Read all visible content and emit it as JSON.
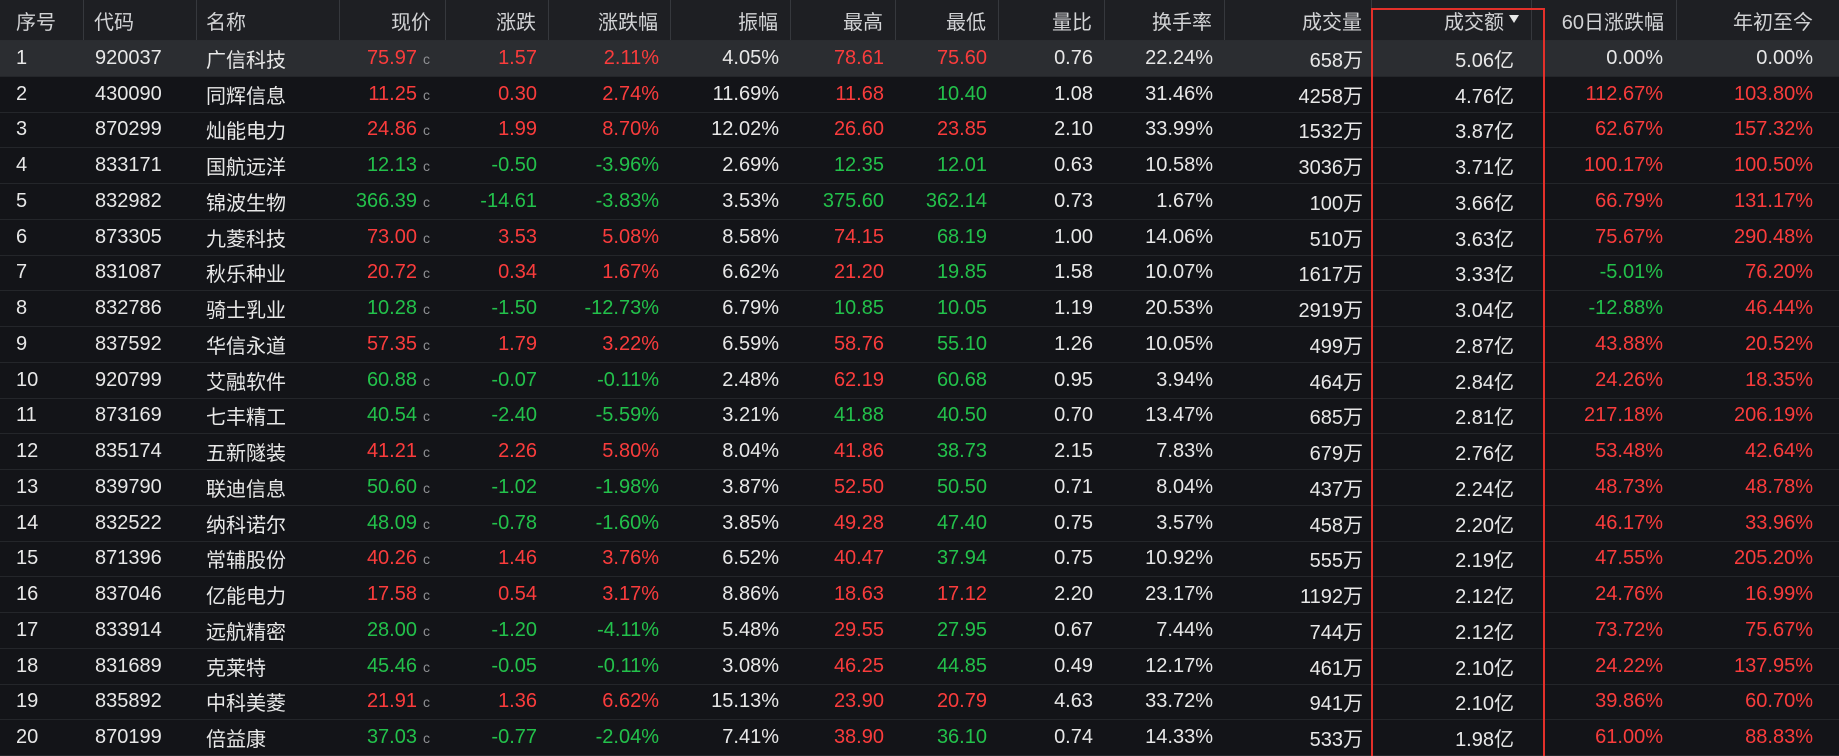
{
  "header": {
    "rank": "序号",
    "code": "代码",
    "name": "名称",
    "price": "现价",
    "change": "涨跌",
    "pct": "涨跌幅",
    "amplitude": "振幅",
    "high": "最高",
    "low": "最低",
    "vol_ratio": "量比",
    "turnover": "换手率",
    "volume": "成交量",
    "amount": "成交额",
    "chg60": "60日涨跌幅",
    "ytd": "年初至今"
  },
  "sort_icon": "sort-desc-icon",
  "price_marker": "c",
  "selected_row": 1,
  "colors": {
    "up": "#fa3c3c",
    "down": "#23c14b",
    "flat": "#e8e8e8",
    "highlight_box": "#e3302a"
  },
  "rows": [
    {
      "rank": "1",
      "code": "920037",
      "name": "广信科技",
      "price": "75.97",
      "change": "1.57",
      "pct": "2.11%",
      "amplitude": "4.05%",
      "high": "78.61",
      "low": "75.60",
      "vol_ratio": "0.76",
      "turnover": "22.24%",
      "volume": "658万",
      "amount": "5.06亿",
      "chg60": "0.00%",
      "ytd": "0.00%"
    },
    {
      "rank": "2",
      "code": "430090",
      "name": "同辉信息",
      "price": "11.25",
      "change": "0.30",
      "pct": "2.74%",
      "amplitude": "11.69%",
      "high": "11.68",
      "low": "10.40",
      "vol_ratio": "1.08",
      "turnover": "31.46%",
      "volume": "4258万",
      "amount": "4.76亿",
      "chg60": "112.67%",
      "ytd": "103.80%"
    },
    {
      "rank": "3",
      "code": "870299",
      "name": "灿能电力",
      "price": "24.86",
      "change": "1.99",
      "pct": "8.70%",
      "amplitude": "12.02%",
      "high": "26.60",
      "low": "23.85",
      "vol_ratio": "2.10",
      "turnover": "33.99%",
      "volume": "1532万",
      "amount": "3.87亿",
      "chg60": "62.67%",
      "ytd": "157.32%"
    },
    {
      "rank": "4",
      "code": "833171",
      "name": "国航远洋",
      "price": "12.13",
      "change": "-0.50",
      "pct": "-3.96%",
      "amplitude": "2.69%",
      "high": "12.35",
      "low": "12.01",
      "vol_ratio": "0.63",
      "turnover": "10.58%",
      "volume": "3036万",
      "amount": "3.71亿",
      "chg60": "100.17%",
      "ytd": "100.50%"
    },
    {
      "rank": "5",
      "code": "832982",
      "name": "锦波生物",
      "price": "366.39",
      "change": "-14.61",
      "pct": "-3.83%",
      "amplitude": "3.53%",
      "high": "375.60",
      "low": "362.14",
      "vol_ratio": "0.73",
      "turnover": "1.67%",
      "volume": "100万",
      "amount": "3.66亿",
      "chg60": "66.79%",
      "ytd": "131.17%"
    },
    {
      "rank": "6",
      "code": "873305",
      "name": "九菱科技",
      "price": "73.00",
      "change": "3.53",
      "pct": "5.08%",
      "amplitude": "8.58%",
      "high": "74.15",
      "low": "68.19",
      "vol_ratio": "1.00",
      "turnover": "14.06%",
      "volume": "510万",
      "amount": "3.63亿",
      "chg60": "75.67%",
      "ytd": "290.48%"
    },
    {
      "rank": "7",
      "code": "831087",
      "name": "秋乐种业",
      "price": "20.72",
      "change": "0.34",
      "pct": "1.67%",
      "amplitude": "6.62%",
      "high": "21.20",
      "low": "19.85",
      "vol_ratio": "1.58",
      "turnover": "10.07%",
      "volume": "1617万",
      "amount": "3.33亿",
      "chg60": "-5.01%",
      "ytd": "76.20%"
    },
    {
      "rank": "8",
      "code": "832786",
      "name": "骑士乳业",
      "price": "10.28",
      "change": "-1.50",
      "pct": "-12.73%",
      "amplitude": "6.79%",
      "high": "10.85",
      "low": "10.05",
      "vol_ratio": "1.19",
      "turnover": "20.53%",
      "volume": "2919万",
      "amount": "3.04亿",
      "chg60": "-12.88%",
      "ytd": "46.44%"
    },
    {
      "rank": "9",
      "code": "837592",
      "name": "华信永道",
      "price": "57.35",
      "change": "1.79",
      "pct": "3.22%",
      "amplitude": "6.59%",
      "high": "58.76",
      "low": "55.10",
      "vol_ratio": "1.26",
      "turnover": "10.05%",
      "volume": "499万",
      "amount": "2.87亿",
      "chg60": "43.88%",
      "ytd": "20.52%"
    },
    {
      "rank": "10",
      "code": "920799",
      "name": "艾融软件",
      "price": "60.88",
      "change": "-0.07",
      "pct": "-0.11%",
      "amplitude": "2.48%",
      "high": "62.19",
      "low": "60.68",
      "vol_ratio": "0.95",
      "turnover": "3.94%",
      "volume": "464万",
      "amount": "2.84亿",
      "chg60": "24.26%",
      "ytd": "18.35%"
    },
    {
      "rank": "11",
      "code": "873169",
      "name": "七丰精工",
      "price": "40.54",
      "change": "-2.40",
      "pct": "-5.59%",
      "amplitude": "3.21%",
      "high": "41.88",
      "low": "40.50",
      "vol_ratio": "0.70",
      "turnover": "13.47%",
      "volume": "685万",
      "amount": "2.81亿",
      "chg60": "217.18%",
      "ytd": "206.19%"
    },
    {
      "rank": "12",
      "code": "835174",
      "name": "五新隧装",
      "price": "41.21",
      "change": "2.26",
      "pct": "5.80%",
      "amplitude": "8.04%",
      "high": "41.86",
      "low": "38.73",
      "vol_ratio": "2.15",
      "turnover": "7.83%",
      "volume": "679万",
      "amount": "2.76亿",
      "chg60": "53.48%",
      "ytd": "42.64%"
    },
    {
      "rank": "13",
      "code": "839790",
      "name": "联迪信息",
      "price": "50.60",
      "change": "-1.02",
      "pct": "-1.98%",
      "amplitude": "3.87%",
      "high": "52.50",
      "low": "50.50",
      "vol_ratio": "0.71",
      "turnover": "8.04%",
      "volume": "437万",
      "amount": "2.24亿",
      "chg60": "48.73%",
      "ytd": "48.78%"
    },
    {
      "rank": "14",
      "code": "832522",
      "name": "纳科诺尔",
      "price": "48.09",
      "change": "-0.78",
      "pct": "-1.60%",
      "amplitude": "3.85%",
      "high": "49.28",
      "low": "47.40",
      "vol_ratio": "0.75",
      "turnover": "3.57%",
      "volume": "458万",
      "amount": "2.20亿",
      "chg60": "46.17%",
      "ytd": "33.96%"
    },
    {
      "rank": "15",
      "code": "871396",
      "name": "常辅股份",
      "price": "40.26",
      "change": "1.46",
      "pct": "3.76%",
      "amplitude": "6.52%",
      "high": "40.47",
      "low": "37.94",
      "vol_ratio": "0.75",
      "turnover": "10.92%",
      "volume": "555万",
      "amount": "2.19亿",
      "chg60": "47.55%",
      "ytd": "205.20%"
    },
    {
      "rank": "16",
      "code": "837046",
      "name": "亿能电力",
      "price": "17.58",
      "change": "0.54",
      "pct": "3.17%",
      "amplitude": "8.86%",
      "high": "18.63",
      "low": "17.12",
      "vol_ratio": "2.20",
      "turnover": "23.17%",
      "volume": "1192万",
      "amount": "2.12亿",
      "chg60": "24.76%",
      "ytd": "16.99%"
    },
    {
      "rank": "17",
      "code": "833914",
      "name": "远航精密",
      "price": "28.00",
      "change": "-1.20",
      "pct": "-4.11%",
      "amplitude": "5.48%",
      "high": "29.55",
      "low": "27.95",
      "vol_ratio": "0.67",
      "turnover": "7.44%",
      "volume": "744万",
      "amount": "2.12亿",
      "chg60": "73.72%",
      "ytd": "75.67%"
    },
    {
      "rank": "18",
      "code": "831689",
      "name": "克莱特",
      "price": "45.46",
      "change": "-0.05",
      "pct": "-0.11%",
      "amplitude": "3.08%",
      "high": "46.25",
      "low": "44.85",
      "vol_ratio": "0.49",
      "turnover": "12.17%",
      "volume": "461万",
      "amount": "2.10亿",
      "chg60": "24.22%",
      "ytd": "137.95%"
    },
    {
      "rank": "19",
      "code": "835892",
      "name": "中科美菱",
      "price": "21.91",
      "change": "1.36",
      "pct": "6.62%",
      "amplitude": "15.13%",
      "high": "23.90",
      "low": "20.79",
      "vol_ratio": "4.63",
      "turnover": "33.72%",
      "volume": "941万",
      "amount": "2.10亿",
      "chg60": "39.86%",
      "ytd": "60.70%"
    },
    {
      "rank": "20",
      "code": "870199",
      "name": "倍益康",
      "price": "37.03",
      "change": "-0.77",
      "pct": "-2.04%",
      "amplitude": "7.41%",
      "high": "38.90",
      "low": "36.10",
      "vol_ratio": "0.74",
      "turnover": "14.33%",
      "volume": "533万",
      "amount": "1.98亿",
      "chg60": "61.00%",
      "ytd": "88.83%"
    }
  ]
}
